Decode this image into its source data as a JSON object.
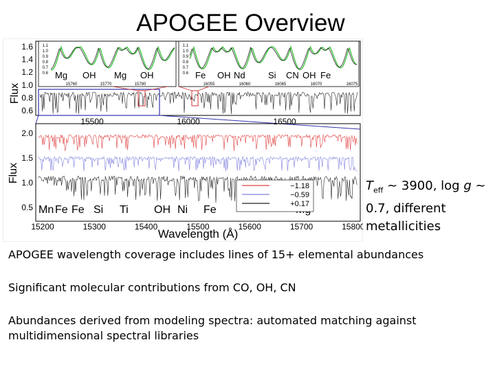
{
  "slide": {
    "title": "APOGEE Overview",
    "caption": {
      "teff_symbol": "T",
      "teff_subscript": "eff",
      "teff_text": " ~ 3900, log ",
      "g_symbol": "g",
      "rest": " ~ 0.7, different metallicities"
    },
    "bullets": [
      "APOGEE wavelength coverage includes lines of 15+ elemental abundances",
      "Significant molecular contributions from CO, OH, CN",
      "Abundances derived from modeling spectra: automated matching against multidimensional spectral libraries"
    ]
  },
  "figure": {
    "top_panel": {
      "ylabel": "Flux",
      "yticks": [
        "1.6",
        "1.4",
        "1.2",
        "1.0",
        "0.8",
        "0.6"
      ],
      "xticks": [
        "15500",
        "16000",
        "16500"
      ],
      "inset_left": {
        "yticks": [
          "1.1",
          "1.0",
          "0.9",
          "0.8",
          "0.7",
          "0.6"
        ],
        "xticks": [
          "15760",
          "15770",
          "15780"
        ],
        "species": [
          "Mg",
          "OH",
          "Mg",
          "OH"
        ]
      },
      "inset_right": {
        "yticks": [
          "1.1",
          "1.0",
          "0.9",
          "0.8",
          "0.7",
          "0.6"
        ],
        "xticks": [
          "16055",
          "16060",
          "16065",
          "16070",
          "16075"
        ],
        "species": [
          "Fe",
          "OH",
          "Nd",
          "Si",
          "CN",
          "OH",
          "Fe"
        ]
      }
    },
    "bottom_panel": {
      "ylabel": "Flux",
      "xlabel": "Wavelength (Å)",
      "yticks": [
        "2.0",
        "1.5",
        "1.0",
        "0.5"
      ],
      "xticks": [
        "15200",
        "15300",
        "15400",
        "15500",
        "15600",
        "15700",
        "15800"
      ],
      "species": [
        "Mn",
        "Fe",
        "Fe",
        "Si",
        "Ti",
        "OH",
        "Ni",
        "Fe",
        "Mg"
      ],
      "legend": [
        "−1.18",
        "−0.59",
        "+0.17"
      ]
    },
    "colors": {
      "model": "#3ec33e",
      "observed": "#222222",
      "panel_blue": "#3333aa",
      "zoom_red": "#d03030",
      "spec_red": "#e04040",
      "spec_blue": "#8080e0",
      "spec_black": "#222222"
    }
  }
}
